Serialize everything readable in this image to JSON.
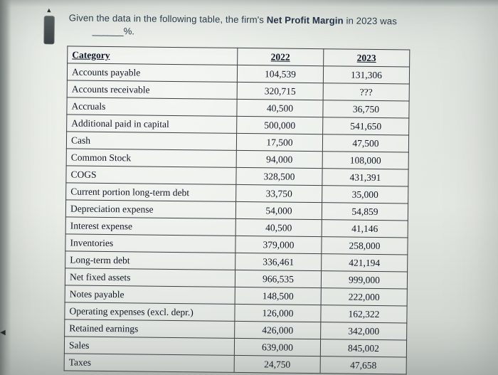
{
  "question": {
    "prefix": "Given the data in the following table, the firm's ",
    "bold": "Net Profit Margin",
    "suffix": " in 2023 was",
    "blank": "______%."
  },
  "table": {
    "headers": [
      "Category",
      "2022",
      "2023"
    ],
    "rows": [
      {
        "category": "Accounts payable",
        "y2022": "104,539",
        "y2023": "131,306"
      },
      {
        "category": "Accounts receivable",
        "y2022": "320,715",
        "y2023": "???"
      },
      {
        "category": "Accruals",
        "y2022": "40,500",
        "y2023": "36,750"
      },
      {
        "category": "Additional paid in capital",
        "y2022": "500,000",
        "y2023": "541,650"
      },
      {
        "category": "Cash",
        "y2022": "17,500",
        "y2023": "47,500"
      },
      {
        "category": "Common Stock",
        "y2022": "94,000",
        "y2023": "108,000"
      },
      {
        "category": "COGS",
        "y2022": "328,500",
        "y2023": "431,391"
      },
      {
        "category": "Current portion long-term debt",
        "y2022": "33,750",
        "y2023": "35,000"
      },
      {
        "category": "Depreciation expense",
        "y2022": "54,000",
        "y2023": "54,859"
      },
      {
        "category": "Interest expense",
        "y2022": "40,500",
        "y2023": "41,146"
      },
      {
        "category": "Inventories",
        "y2022": "379,000",
        "y2023": "258,000"
      },
      {
        "category": "Long-term debt",
        "y2022": "336,461",
        "y2023": "421,194"
      },
      {
        "category": "Net fixed assets",
        "y2022": "966,535",
        "y2023": "999,000"
      },
      {
        "category": "Notes payable",
        "y2022": "148,500",
        "y2023": "222,000"
      },
      {
        "category": "Operating expenses (excl. depr.)",
        "y2022": "126,000",
        "y2023": "162,322"
      },
      {
        "category": "Retained earnings",
        "y2022": "426,000",
        "y2023": "342,000"
      },
      {
        "category": "Sales",
        "y2022": "639,000",
        "y2023": "845,002"
      },
      {
        "category": "Taxes",
        "y2022": "24,750",
        "y2023": "47,658"
      }
    ]
  },
  "icons": {
    "scroll_up": "▲",
    "left_pointer": "◀"
  },
  "colors": {
    "table_text": "#101826",
    "question_text": "#2b3a4d",
    "table_border": "#3a3f45"
  }
}
